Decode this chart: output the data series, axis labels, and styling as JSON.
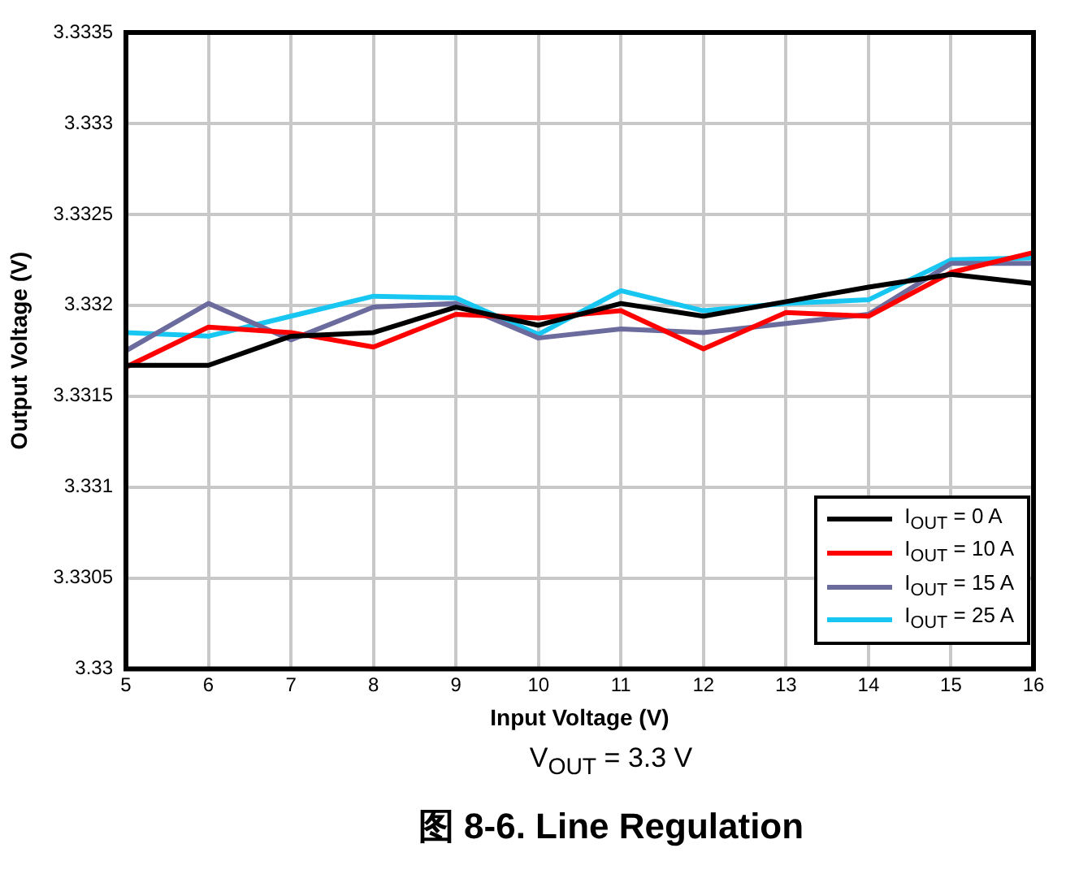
{
  "chart_data": {
    "type": "line",
    "title": "图 8-6. Line Regulation",
    "subtitle": "V$_{OUT}$ = 3.3 V",
    "xlabel": "Input Voltage (V)",
    "ylabel": "Output Voltage (V)",
    "x": [
      5,
      6,
      7,
      8,
      9,
      10,
      11,
      12,
      13,
      14,
      15,
      16
    ],
    "series": [
      {
        "name": "I$_{OUT}$ = 0 A",
        "color": "#000000",
        "values": [
          3.33167,
          3.33167,
          3.33183,
          3.33185,
          3.33199,
          3.33189,
          3.33201,
          3.33194,
          3.33202,
          3.3321,
          3.33217,
          3.33212
        ]
      },
      {
        "name": "I$_{OUT}$ = 10 A",
        "color": "#ff0000",
        "values": [
          3.33166,
          3.33188,
          3.33185,
          3.33177,
          3.33195,
          3.33193,
          3.33197,
          3.33176,
          3.33196,
          3.33194,
          3.33218,
          3.33229
        ]
      },
      {
        "name": "I$_{OUT}$ = 15 A",
        "color": "#6b6b9e",
        "values": [
          3.33175,
          3.33201,
          3.33181,
          3.33199,
          3.33201,
          3.33182,
          3.33187,
          3.33185,
          3.3319,
          3.33195,
          3.33223,
          3.33223
        ]
      },
      {
        "name": "I$_{OUT}$ = 25 A",
        "color": "#17c7f2",
        "values": [
          3.33185,
          3.33183,
          3.33194,
          3.33205,
          3.33204,
          3.33184,
          3.33208,
          3.33197,
          3.33201,
          3.33203,
          3.33225,
          3.33226
        ]
      }
    ],
    "xlim": [
      5,
      16
    ],
    "xticks": [
      5,
      6,
      7,
      8,
      9,
      10,
      11,
      12,
      13,
      14,
      15,
      16
    ],
    "ylim": [
      3.33,
      3.3335
    ],
    "yticks": [
      3.33,
      3.3305,
      3.331,
      3.3315,
      3.332,
      3.3325,
      3.333,
      3.3335
    ],
    "grid": true,
    "legend": "bottom right",
    "marker": "none",
    "line_style": "solid"
  }
}
